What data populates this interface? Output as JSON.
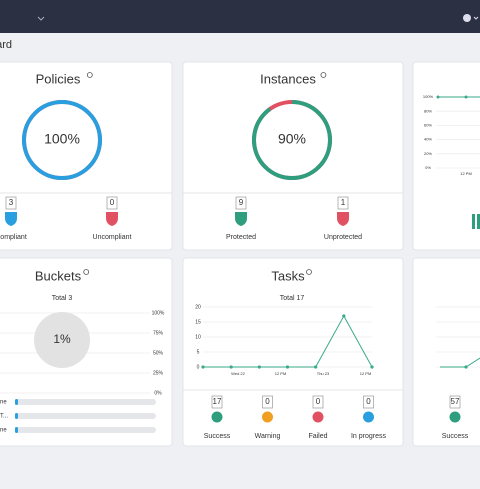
{
  "header": {
    "page_title": "Dashboard"
  },
  "policies": {
    "title": "Policies",
    "value": 100,
    "value_label": "100%",
    "stats": [
      {
        "count": "3",
        "label": "Compliant"
      },
      {
        "count": "0",
        "label": "Uncompliant"
      }
    ]
  },
  "instances": {
    "title": "Instances",
    "value": 90,
    "value_label": "90%",
    "stats": [
      {
        "count": "9",
        "label": "Protected"
      },
      {
        "count": "1",
        "label": "Unprotected"
      }
    ]
  },
  "compliance": {
    "yticks": [
      "100%",
      "80%",
      "60%",
      "40%",
      "20%",
      "0%"
    ],
    "x_label": "12 PM"
  },
  "buckets": {
    "title": "Buckets",
    "total": "Total 3",
    "value": 1,
    "value_label": "1%",
    "axis": [
      "100%",
      "75%",
      "50%",
      "25%",
      "0%"
    ],
    "rows": [
      "ne",
      "T...",
      "ne"
    ]
  },
  "tasks": {
    "title": "Tasks",
    "total": "Total 17",
    "chart": {
      "type": "line",
      "ylim": [
        0,
        20
      ],
      "yticks": [
        0,
        5,
        10,
        15,
        20
      ],
      "x_labels": [
        "Wed 22",
        "12 PM",
        "Thu 23",
        "12 PM"
      ],
      "series": [
        {
          "color": "#3aaa8a",
          "values": [
            0,
            0,
            0,
            0,
            0,
            17,
            0
          ]
        }
      ]
    },
    "stats": [
      {
        "count": "17",
        "label": "Success"
      },
      {
        "count": "0",
        "label": "Warning"
      },
      {
        "count": "0",
        "label": "Failed"
      },
      {
        "count": "0",
        "label": "In progress"
      }
    ]
  },
  "results": {
    "count": "57",
    "label": "Success"
  }
}
